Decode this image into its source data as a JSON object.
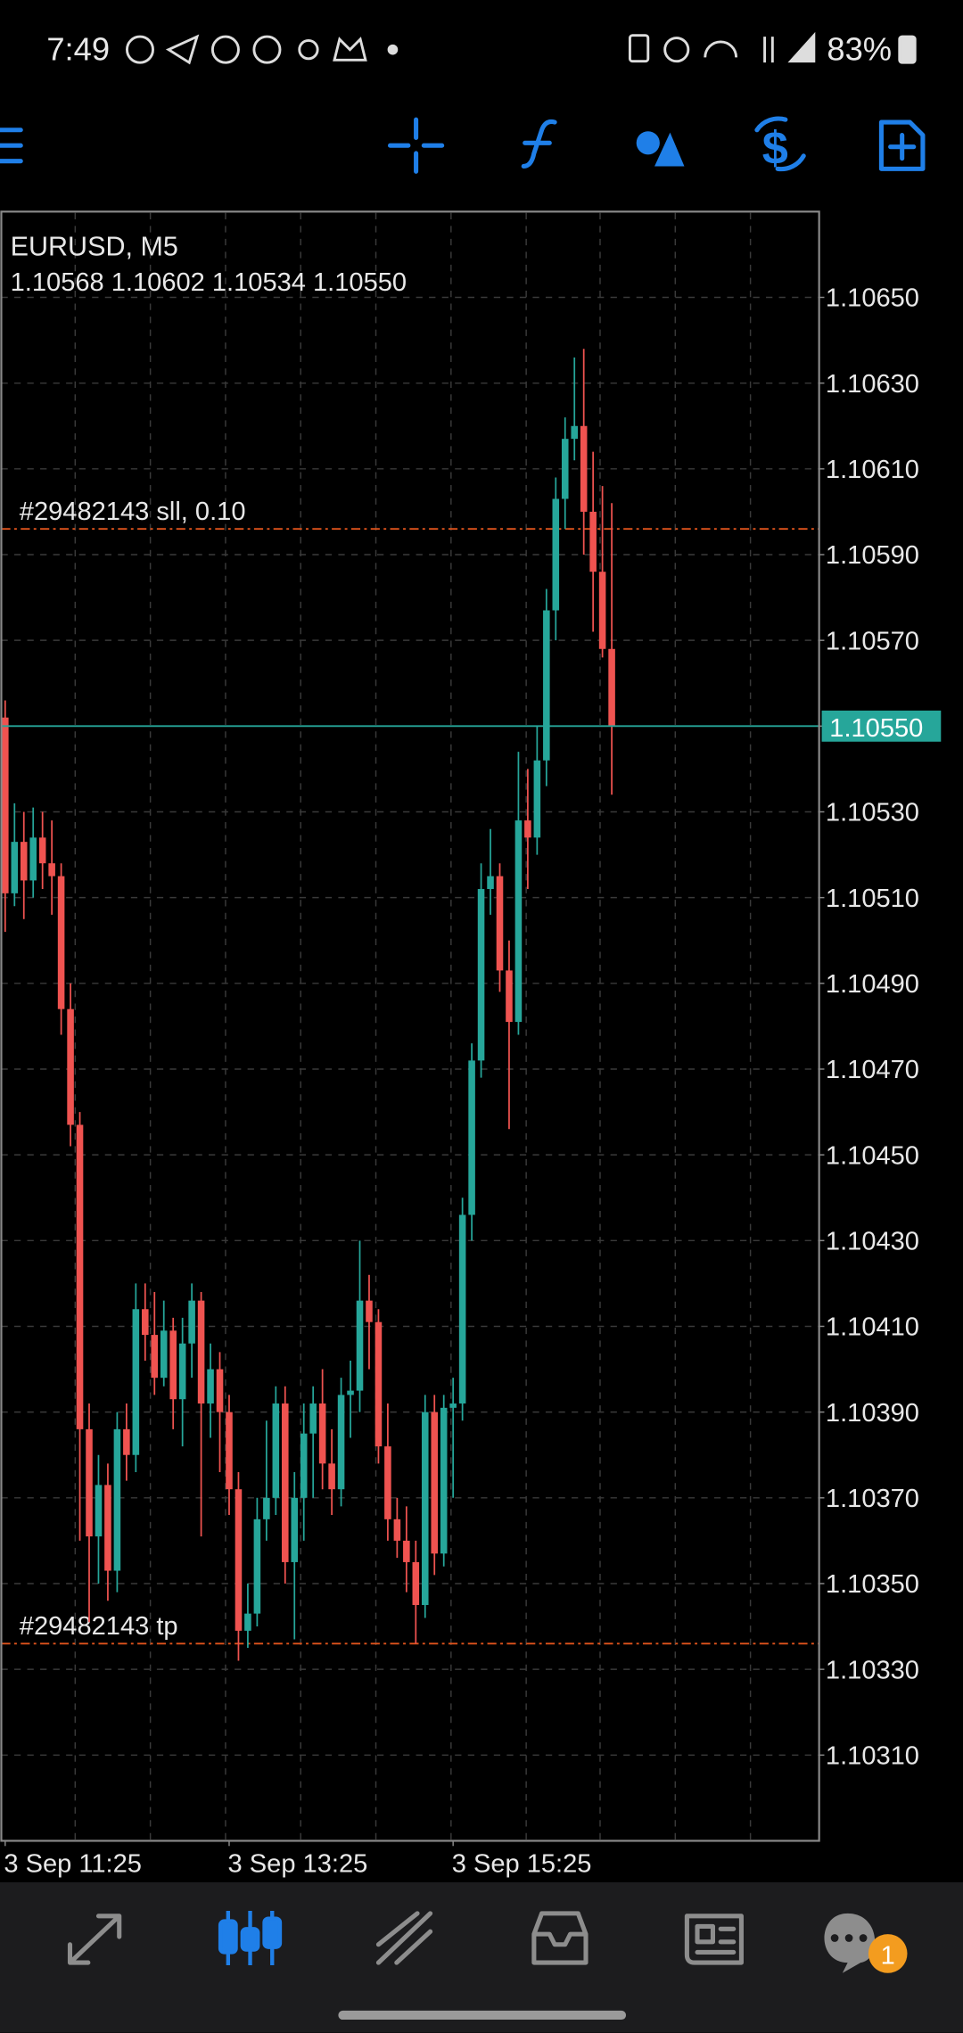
{
  "status_bar": {
    "time": "7:49",
    "battery": "83%"
  },
  "chart_data": {
    "type": "candlestick",
    "title": "EURUSD, M5",
    "subtitle": "1.10568 1.10602 1.10534 1.10550",
    "open": [
      1.10552,
      1.10511,
      1.10523,
      1.10514,
      1.10524,
      1.10518,
      1.10515,
      1.10484,
      1.10457,
      1.10386,
      1.10361,
      1.10373,
      1.10353,
      1.10386,
      1.1038,
      1.10414,
      1.10408,
      1.10398,
      1.10409,
      1.10393,
      1.10406,
      1.10416,
      1.10392,
      1.104,
      1.1039,
      1.10372,
      1.10339,
      1.10343,
      1.10365,
      1.1037,
      1.10392,
      1.10355,
      1.1037,
      1.10385,
      1.10392,
      1.10378,
      1.10372,
      1.10394,
      1.10395,
      1.10416,
      1.10411,
      1.10382,
      1.10365,
      1.1036,
      1.10355,
      1.10345,
      1.1039,
      1.10357,
      1.10391,
      1.10392,
      1.10436,
      1.10472,
      1.10512,
      1.10515,
      1.10493,
      1.10481,
      1.10528,
      1.10524,
      1.10542,
      1.10577,
      1.10603,
      1.10617,
      1.1062,
      1.106,
      1.10586,
      1.10568
    ],
    "high": [
      1.10556,
      1.10532,
      1.1053,
      1.10531,
      1.1053,
      1.10528,
      1.10518,
      1.1049,
      1.1046,
      1.10392,
      1.1038,
      1.10378,
      1.1039,
      1.10392,
      1.1042,
      1.1042,
      1.10418,
      1.10416,
      1.10412,
      1.10412,
      1.1042,
      1.10418,
      1.10406,
      1.10404,
      1.10394,
      1.10376,
      1.1035,
      1.1037,
      1.10388,
      1.10396,
      1.10396,
      1.10376,
      1.10392,
      1.10396,
      1.104,
      1.10386,
      1.10398,
      1.10402,
      1.1043,
      1.10422,
      1.10414,
      1.10392,
      1.1037,
      1.10368,
      1.1036,
      1.10394,
      1.10394,
      1.10394,
      1.10398,
      1.1044,
      1.10476,
      1.10518,
      1.10526,
      1.10518,
      1.105,
      1.10544,
      1.1054,
      1.1055,
      1.10582,
      1.10608,
      1.10622,
      1.10636,
      1.10638,
      1.10614,
      1.10606,
      1.10602
    ],
    "low": [
      1.10502,
      1.10508,
      1.10505,
      1.1051,
      1.10512,
      1.10506,
      1.10478,
      1.10452,
      1.1036,
      1.10341,
      1.1035,
      1.10346,
      1.10348,
      1.10374,
      1.10376,
      1.10402,
      1.10394,
      1.10396,
      1.10386,
      1.10382,
      1.10398,
      1.10361,
      1.10384,
      1.10376,
      1.10366,
      1.10332,
      1.10335,
      1.1034,
      1.1036,
      1.10366,
      1.1035,
      1.10337,
      1.1036,
      1.1037,
      1.10372,
      1.10366,
      1.10368,
      1.10384,
      1.1039,
      1.104,
      1.10378,
      1.1036,
      1.10356,
      1.10348,
      1.10336,
      1.10342,
      1.10352,
      1.10354,
      1.1037,
      1.10388,
      1.1043,
      1.10468,
      1.10506,
      1.10488,
      1.10456,
      1.10478,
      1.10512,
      1.1052,
      1.10536,
      1.1057,
      1.10596,
      1.10612,
      1.1059,
      1.10572,
      1.10566,
      1.10534
    ],
    "close": [
      1.10511,
      1.10523,
      1.10514,
      1.10524,
      1.10518,
      1.10515,
      1.10484,
      1.10457,
      1.10386,
      1.10361,
      1.10373,
      1.10353,
      1.10386,
      1.1038,
      1.10414,
      1.10408,
      1.10398,
      1.10409,
      1.10393,
      1.10406,
      1.10416,
      1.10392,
      1.104,
      1.1039,
      1.10372,
      1.10339,
      1.10343,
      1.10365,
      1.1037,
      1.10392,
      1.10355,
      1.1037,
      1.10385,
      1.10392,
      1.10378,
      1.10372,
      1.10394,
      1.10395,
      1.10416,
      1.10411,
      1.10382,
      1.10365,
      1.1036,
      1.10355,
      1.10345,
      1.1039,
      1.10357,
      1.10391,
      1.10392,
      1.10436,
      1.10472,
      1.10512,
      1.10515,
      1.10493,
      1.10481,
      1.10528,
      1.10524,
      1.10542,
      1.10577,
      1.10603,
      1.10617,
      1.1062,
      1.106,
      1.10586,
      1.10568,
      1.1055
    ],
    "up_color": "#26a69a",
    "down_color": "#ef5350",
    "ylim": [
      1.1029,
      1.1067
    ],
    "yticks": [
      {
        "value": 1.1065,
        "label": "1.10650"
      },
      {
        "value": 1.1063,
        "label": "1.10630"
      },
      {
        "value": 1.1061,
        "label": "1.10610"
      },
      {
        "value": 1.1059,
        "label": "1.10590"
      },
      {
        "value": 1.1057,
        "label": "1.10570"
      },
      {
        "value": 1.1055,
        "label": "1.10550"
      },
      {
        "value": 1.1053,
        "label": "1.10530"
      },
      {
        "value": 1.1051,
        "label": "1.10510"
      },
      {
        "value": 1.1049,
        "label": "1.10490"
      },
      {
        "value": 1.1047,
        "label": "1.10470"
      },
      {
        "value": 1.1045,
        "label": "1.10450"
      },
      {
        "value": 1.1043,
        "label": "1.10430"
      },
      {
        "value": 1.1041,
        "label": "1.10410"
      },
      {
        "value": 1.1039,
        "label": "1.10390"
      },
      {
        "value": 1.1037,
        "label": "1.10370"
      },
      {
        "value": 1.1035,
        "label": "1.10350"
      },
      {
        "value": 1.1033,
        "label": "1.10330"
      },
      {
        "value": 1.1031,
        "label": "1.10310"
      }
    ],
    "xticks": [
      {
        "value": 0,
        "label": "3 Sep 11:25"
      },
      {
        "value": 24,
        "label": "3 Sep 13:25"
      },
      {
        "value": 48,
        "label": "3 Sep 15:25"
      }
    ],
    "grid": true,
    "price_line": {
      "value": 1.1055,
      "label": "1.10550",
      "color": "#26a69a"
    },
    "order_lines": [
      {
        "label": "#29482143 sll, 0.10",
        "value": 1.10596
      },
      {
        "label": "#29482143 tp",
        "value": 1.10336
      }
    ],
    "order_line_color": "#e0541c"
  },
  "nav": {
    "badge": "1"
  }
}
